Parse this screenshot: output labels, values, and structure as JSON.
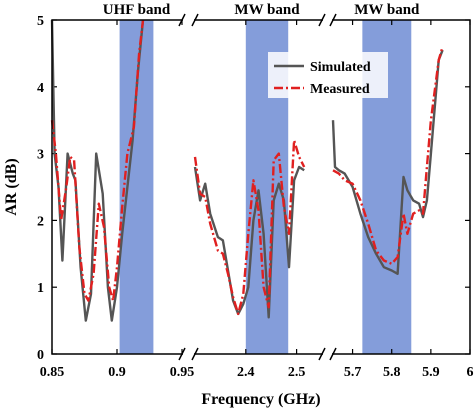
{
  "chart_data": {
    "type": "line",
    "xlabel": "Frequency (GHz)",
    "ylabel": "AR (dB)",
    "ylim": [
      0,
      5
    ],
    "yticks": [
      0,
      1,
      2,
      3,
      4,
      5
    ],
    "broken_x_axis": true,
    "legend_position": "top-right",
    "colors": {
      "simulated": "#555555",
      "measured": "#e02020",
      "band_fill": "#5577cc"
    },
    "segments": [
      {
        "xlim": [
          0.85,
          0.95
        ],
        "xticks": [
          0.85,
          0.9,
          0.95
        ],
        "tick_labels": [
          "0.85",
          "0.9",
          "0.95"
        ],
        "band": {
          "label": "UHF band",
          "range": [
            0.902,
            0.928
          ]
        }
      },
      {
        "xlim": [
          2.3,
          2.55
        ],
        "xticks": [
          2.4,
          2.5
        ],
        "tick_labels": [
          "2.4",
          "2.5"
        ],
        "band": {
          "label": "MW band",
          "range": [
            2.4,
            2.4835
          ]
        }
      },
      {
        "xlim": [
          5.65,
          6.0
        ],
        "xticks": [
          5.7,
          5.8,
          5.9,
          6.0
        ],
        "tick_labels": [
          "5.7",
          "5.8",
          "5.9",
          "6"
        ],
        "band": {
          "label": "MW band",
          "range": [
            5.725,
            5.85
          ]
        }
      }
    ],
    "series": [
      {
        "name": "Simulated",
        "style": "solid",
        "segments": [
          [
            [
              0.85,
              5.0
            ],
            [
              0.852,
              3.0
            ],
            [
              0.855,
              2.5
            ],
            [
              0.858,
              1.4
            ],
            [
              0.862,
              3.0
            ],
            [
              0.866,
              2.7
            ],
            [
              0.868,
              2.6
            ],
            [
              0.872,
              1.3
            ],
            [
              0.876,
              0.5
            ],
            [
              0.88,
              0.9
            ],
            [
              0.884,
              3.0
            ],
            [
              0.889,
              2.4
            ],
            [
              0.893,
              1.0
            ],
            [
              0.896,
              0.5
            ],
            [
              0.9,
              1.0
            ],
            [
              0.904,
              1.8
            ],
            [
              0.908,
              2.5
            ],
            [
              0.912,
              3.2
            ],
            [
              0.916,
              4.2
            ],
            [
              0.92,
              5.0
            ]
          ],
          [
            [
              2.3,
              2.8
            ],
            [
              2.31,
              2.3
            ],
            [
              2.32,
              2.55
            ],
            [
              2.33,
              2.1
            ],
            [
              2.345,
              1.75
            ],
            [
              2.355,
              1.7
            ],
            [
              2.365,
              1.25
            ],
            [
              2.375,
              0.8
            ],
            [
              2.385,
              0.6
            ],
            [
              2.395,
              0.75
            ],
            [
              2.405,
              1.0
            ],
            [
              2.415,
              2.0
            ],
            [
              2.425,
              2.45
            ],
            [
              2.435,
              1.8
            ],
            [
              2.445,
              0.55
            ],
            [
              2.455,
              2.3
            ],
            [
              2.465,
              2.55
            ],
            [
              2.475,
              2.3
            ],
            [
              2.485,
              1.3
            ],
            [
              2.495,
              2.6
            ],
            [
              2.505,
              2.8
            ],
            [
              2.515,
              2.75
            ]
          ],
          [
            [
              5.65,
              3.5
            ],
            [
              5.655,
              2.8
            ],
            [
              5.665,
              2.75
            ],
            [
              5.68,
              2.7
            ],
            [
              5.7,
              2.5
            ],
            [
              5.72,
              2.1
            ],
            [
              5.74,
              1.75
            ],
            [
              5.76,
              1.5
            ],
            [
              5.78,
              1.3
            ],
            [
              5.8,
              1.25
            ],
            [
              5.815,
              1.2
            ],
            [
              5.83,
              2.65
            ],
            [
              5.84,
              2.45
            ],
            [
              5.855,
              2.3
            ],
            [
              5.87,
              2.25
            ],
            [
              5.88,
              2.05
            ],
            [
              5.89,
              2.3
            ],
            [
              5.9,
              3.0
            ],
            [
              5.92,
              4.4
            ],
            [
              5.93,
              4.55
            ]
          ]
        ]
      },
      {
        "name": "Measured",
        "style": "dash-dot",
        "segments": [
          [
            [
              0.85,
              3.5
            ],
            [
              0.853,
              3.0
            ],
            [
              0.857,
              2.0
            ],
            [
              0.861,
              2.5
            ],
            [
              0.864,
              2.95
            ],
            [
              0.867,
              2.9
            ],
            [
              0.871,
              1.6
            ],
            [
              0.875,
              0.9
            ],
            [
              0.878,
              0.8
            ],
            [
              0.882,
              1.2
            ],
            [
              0.886,
              2.25
            ],
            [
              0.89,
              1.9
            ],
            [
              0.894,
              1.0
            ],
            [
              0.897,
              0.8
            ],
            [
              0.9,
              1.3
            ],
            [
              0.904,
              2.2
            ],
            [
              0.908,
              3.0
            ],
            [
              0.913,
              3.4
            ],
            [
              0.917,
              4.5
            ],
            [
              0.92,
              5.0
            ]
          ],
          [
            [
              2.3,
              2.95
            ],
            [
              2.31,
              2.4
            ],
            [
              2.32,
              2.35
            ],
            [
              2.33,
              1.95
            ],
            [
              2.345,
              1.55
            ],
            [
              2.355,
              1.5
            ],
            [
              2.365,
              1.2
            ],
            [
              2.375,
              0.85
            ],
            [
              2.385,
              0.6
            ],
            [
              2.395,
              0.9
            ],
            [
              2.405,
              1.8
            ],
            [
              2.415,
              2.6
            ],
            [
              2.425,
              2.15
            ],
            [
              2.435,
              1.0
            ],
            [
              2.445,
              0.7
            ],
            [
              2.455,
              2.9
            ],
            [
              2.465,
              3.0
            ],
            [
              2.475,
              2.2
            ],
            [
              2.485,
              1.8
            ],
            [
              2.495,
              3.2
            ],
            [
              2.505,
              2.95
            ],
            [
              2.515,
              2.8
            ]
          ],
          [
            [
              5.65,
              2.75
            ],
            [
              5.665,
              2.7
            ],
            [
              5.68,
              2.6
            ],
            [
              5.7,
              2.55
            ],
            [
              5.72,
              2.3
            ],
            [
              5.74,
              1.95
            ],
            [
              5.76,
              1.55
            ],
            [
              5.78,
              1.4
            ],
            [
              5.8,
              1.35
            ],
            [
              5.815,
              1.45
            ],
            [
              5.83,
              2.1
            ],
            [
              5.84,
              1.8
            ],
            [
              5.855,
              2.1
            ],
            [
              5.87,
              2.15
            ],
            [
              5.88,
              2.1
            ],
            [
              5.89,
              2.8
            ],
            [
              5.9,
              3.5
            ],
            [
              5.92,
              4.4
            ],
            [
              5.93,
              4.6
            ]
          ]
        ]
      }
    ]
  }
}
